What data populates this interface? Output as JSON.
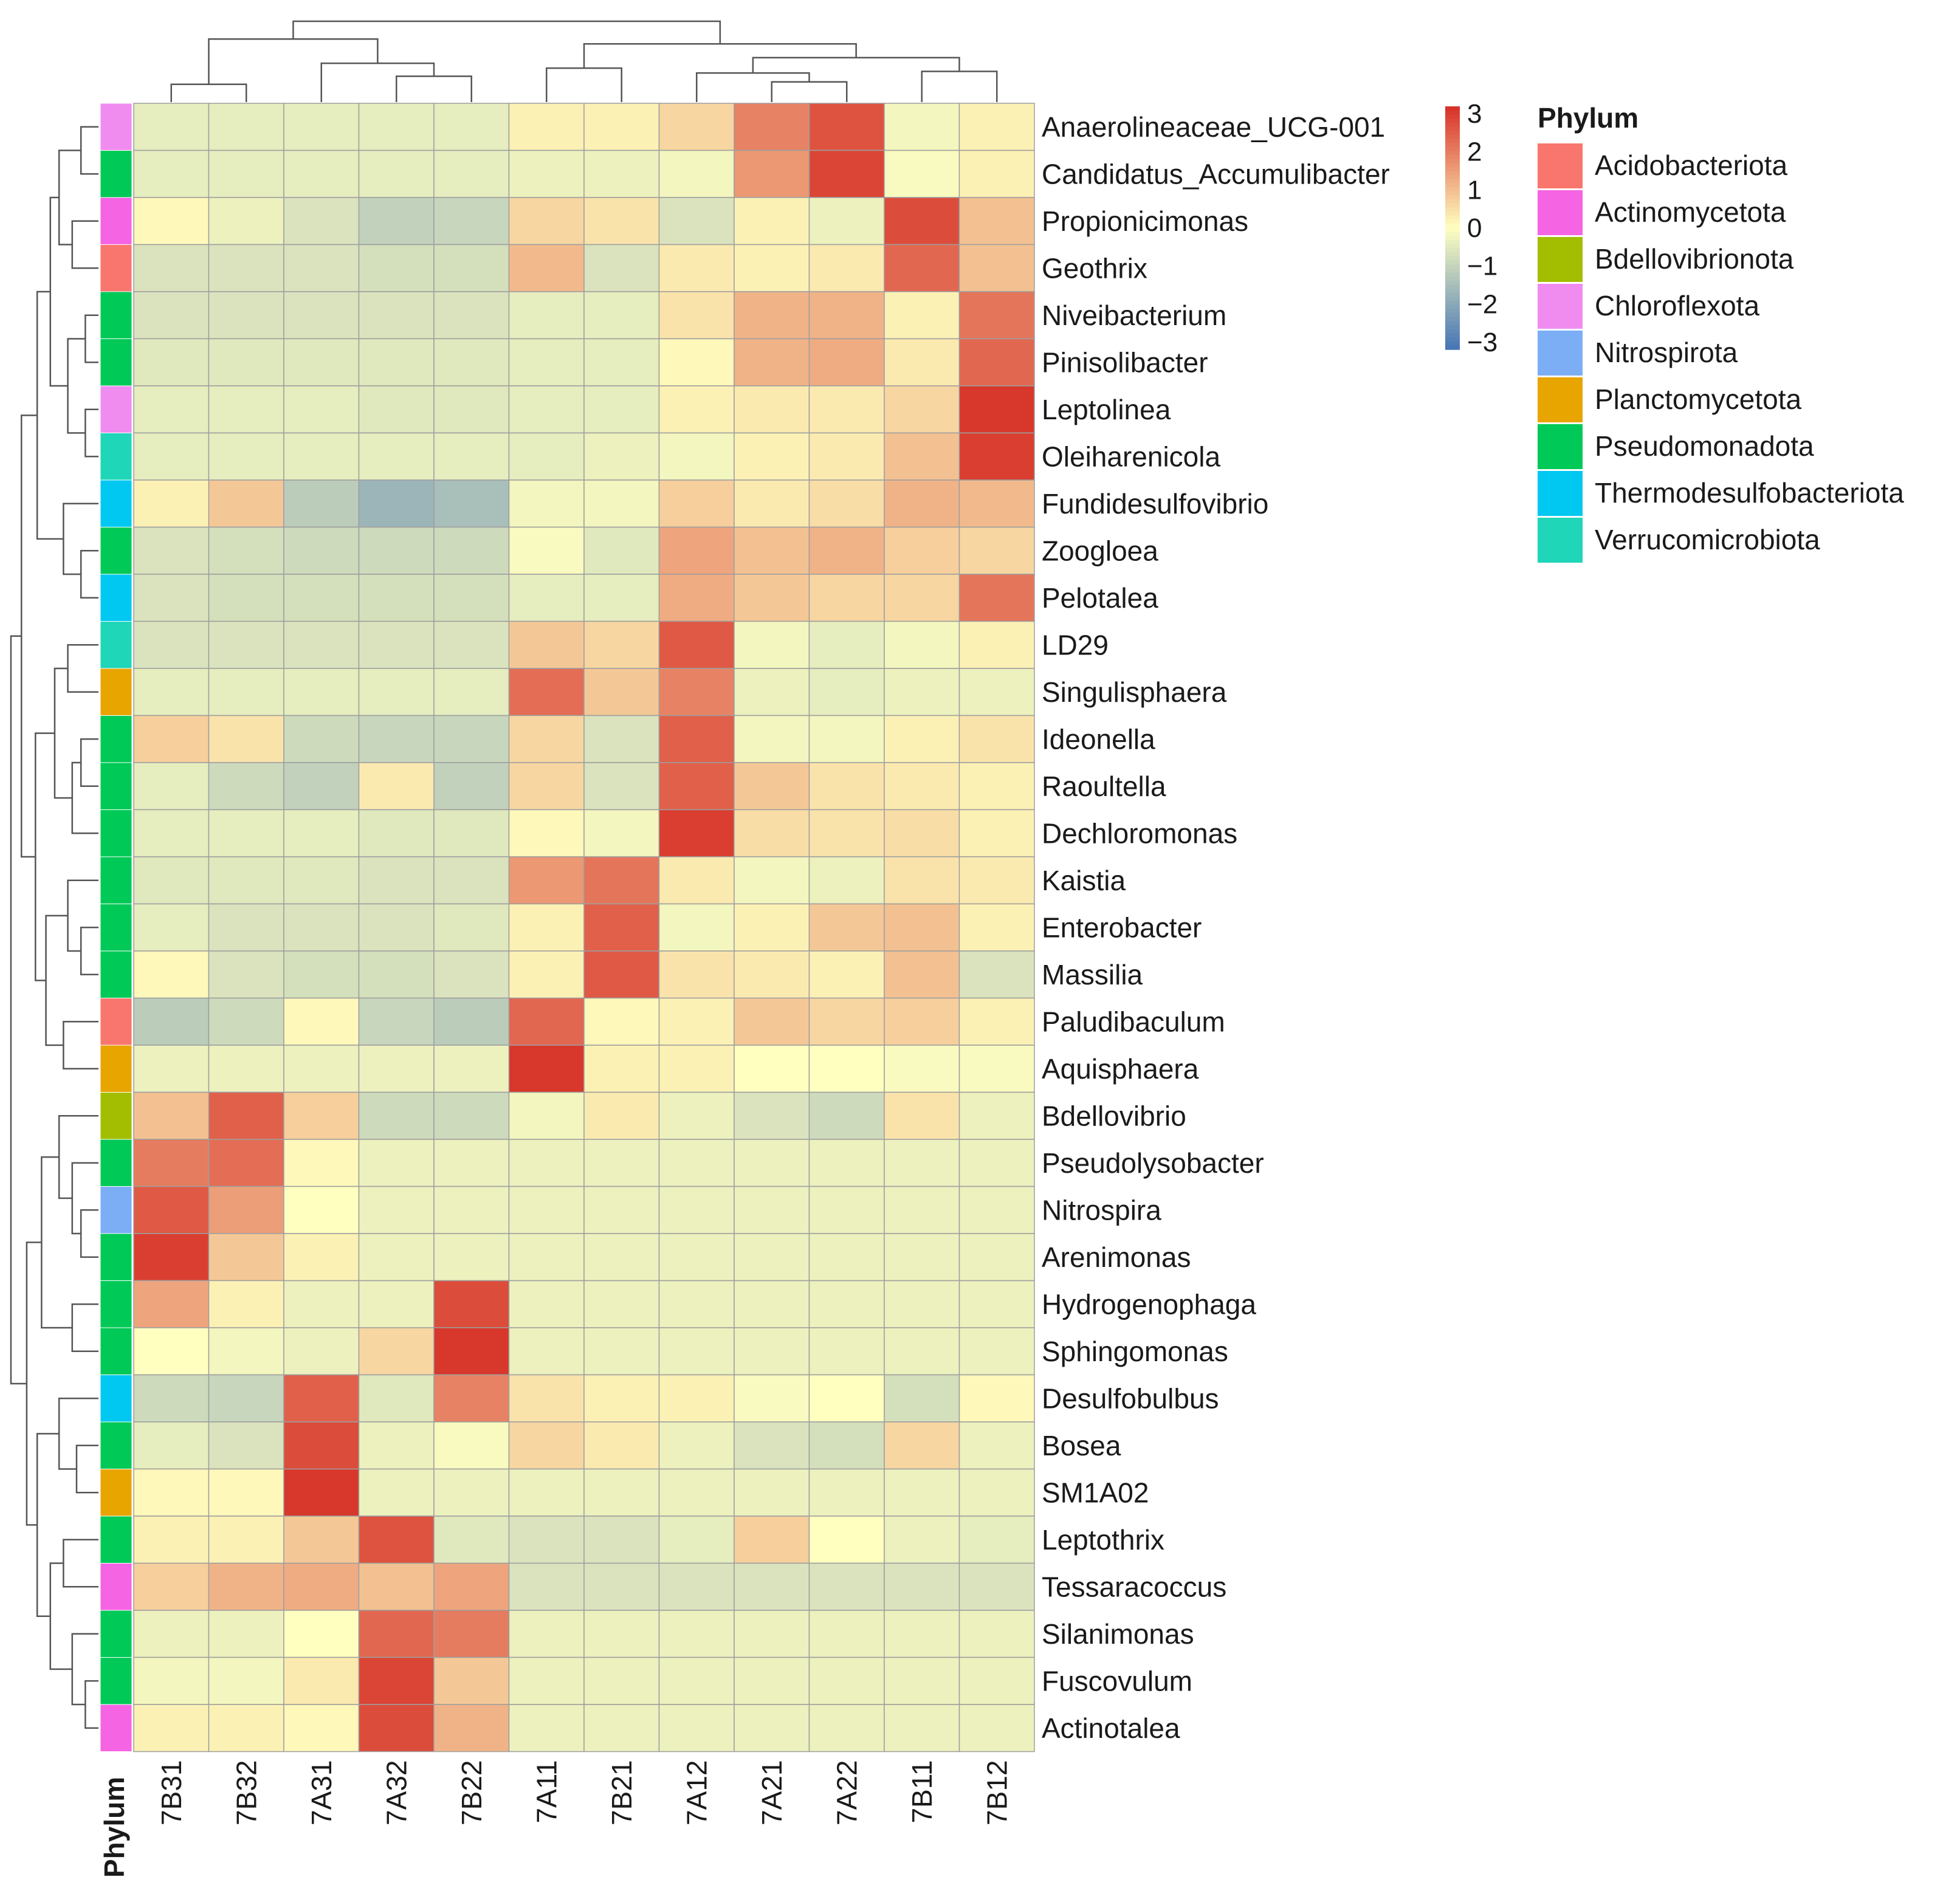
{
  "chart_data": {
    "type": "heatmap",
    "columns": [
      "7B31",
      "7B32",
      "7A31",
      "7A32",
      "7B22",
      "7A11",
      "7B21",
      "7A12",
      "7A21",
      "7A22",
      "7B11",
      "7B12"
    ],
    "rows": [
      {
        "name": "Anaerolineaceae_UCG-001",
        "phylum": "Chloroflexota",
        "values": [
          -0.4,
          -0.4,
          -0.4,
          -0.4,
          -0.4,
          0.2,
          0.2,
          0.6,
          1.8,
          2.5,
          -0.2,
          0.2
        ]
      },
      {
        "name": "Candidatus_Accumulibacter",
        "phylum": "Pseudomonadota",
        "values": [
          -0.4,
          -0.4,
          -0.4,
          -0.4,
          -0.4,
          -0.3,
          -0.3,
          -0.2,
          1.5,
          2.7,
          -0.1,
          0.2
        ]
      },
      {
        "name": "Propionicimonas",
        "phylum": "Actinomycetota",
        "values": [
          0.1,
          -0.3,
          -0.6,
          -1.0,
          -0.9,
          0.6,
          0.4,
          -0.6,
          0.2,
          -0.3,
          2.6,
          0.9
        ]
      },
      {
        "name": "Geothrix",
        "phylum": "Acidobacteriota",
        "values": [
          -0.6,
          -0.6,
          -0.6,
          -0.7,
          -0.7,
          1.0,
          -0.6,
          0.3,
          0.2,
          0.3,
          2.2,
          0.9
        ]
      },
      {
        "name": "Niveibacterium",
        "phylum": "Pseudomonadota",
        "values": [
          -0.6,
          -0.6,
          -0.6,
          -0.6,
          -0.6,
          -0.4,
          -0.4,
          0.4,
          1.1,
          1.1,
          0.2,
          2.0
        ]
      },
      {
        "name": "Pinisolibacter",
        "phylum": "Pseudomonadota",
        "values": [
          -0.5,
          -0.5,
          -0.5,
          -0.5,
          -0.5,
          -0.4,
          -0.4,
          0.1,
          1.1,
          1.2,
          0.3,
          2.2
        ]
      },
      {
        "name": "Leptolinea",
        "phylum": "Chloroflexota",
        "values": [
          -0.4,
          -0.4,
          -0.4,
          -0.5,
          -0.5,
          -0.4,
          -0.4,
          0.2,
          0.3,
          0.3,
          0.6,
          2.9
        ]
      },
      {
        "name": "Oleiharenicola",
        "phylum": "Verrucomicrobiota",
        "values": [
          -0.4,
          -0.4,
          -0.4,
          -0.4,
          -0.4,
          -0.4,
          -0.3,
          -0.2,
          0.2,
          0.3,
          0.9,
          2.8
        ]
      },
      {
        "name": "Fundidesulfovibrio",
        "phylum": "Thermodesulfobacteriota",
        "values": [
          0.2,
          0.8,
          -1.1,
          -1.6,
          -1.4,
          -0.2,
          -0.2,
          0.7,
          0.3,
          0.5,
          1.1,
          1.0
        ]
      },
      {
        "name": "Zoogloea",
        "phylum": "Pseudomonadota",
        "values": [
          -0.6,
          -0.7,
          -0.8,
          -0.8,
          -0.8,
          -0.1,
          -0.5,
          1.3,
          0.9,
          1.1,
          0.7,
          0.6
        ]
      },
      {
        "name": "Pelotalea",
        "phylum": "Thermodesulfobacteriota",
        "values": [
          -0.6,
          -0.7,
          -0.7,
          -0.7,
          -0.7,
          -0.4,
          -0.4,
          1.2,
          0.8,
          0.6,
          0.6,
          2.0
        ]
      },
      {
        "name": "LD29",
        "phylum": "Verrucomicrobiota",
        "values": [
          -0.6,
          -0.6,
          -0.6,
          -0.6,
          -0.6,
          0.8,
          0.6,
          2.4,
          -0.2,
          -0.4,
          -0.2,
          0.2
        ]
      },
      {
        "name": "Singulisphaera",
        "phylum": "Planctomycetota",
        "values": [
          -0.4,
          -0.4,
          -0.4,
          -0.4,
          -0.4,
          2.1,
          0.8,
          1.8,
          -0.3,
          -0.4,
          -0.3,
          -0.3
        ]
      },
      {
        "name": "Ideonella",
        "phylum": "Pseudomonadota",
        "values": [
          0.7,
          0.4,
          -0.8,
          -0.9,
          -0.9,
          0.6,
          -0.6,
          2.3,
          -0.2,
          -0.2,
          0.2,
          0.4
        ]
      },
      {
        "name": "Raoultella",
        "phylum": "Pseudomonadota",
        "values": [
          -0.4,
          -0.8,
          -1.0,
          0.3,
          -1.0,
          0.6,
          -0.6,
          2.3,
          0.8,
          0.4,
          0.3,
          0.2
        ]
      },
      {
        "name": "Dechloromonas",
        "phylum": "Pseudomonadota",
        "values": [
          -0.4,
          -0.4,
          -0.4,
          -0.5,
          -0.5,
          0.1,
          -0.2,
          2.8,
          0.5,
          0.4,
          0.5,
          0.2
        ]
      },
      {
        "name": "Kaistia",
        "phylum": "Pseudomonadota",
        "values": [
          -0.5,
          -0.5,
          -0.5,
          -0.6,
          -0.6,
          1.5,
          2.0,
          0.3,
          -0.2,
          -0.3,
          0.4,
          0.3
        ]
      },
      {
        "name": "Enterobacter",
        "phylum": "Pseudomonadota",
        "values": [
          -0.4,
          -0.6,
          -0.6,
          -0.6,
          -0.5,
          0.2,
          2.3,
          -0.2,
          0.2,
          0.8,
          0.9,
          0.2
        ]
      },
      {
        "name": "Massilia",
        "phylum": "Pseudomonadota",
        "values": [
          0.1,
          -0.6,
          -0.7,
          -0.7,
          -0.6,
          0.2,
          2.4,
          0.4,
          0.3,
          0.2,
          0.9,
          -0.6
        ]
      },
      {
        "name": "Paludibaculum",
        "phylum": "Acidobacteriota",
        "values": [
          -1.1,
          -0.8,
          0.1,
          -0.9,
          -1.1,
          2.2,
          0.1,
          0.2,
          0.8,
          0.6,
          0.7,
          0.2
        ]
      },
      {
        "name": "Aquisphaera",
        "phylum": "Planctomycetota",
        "values": [
          -0.3,
          -0.3,
          -0.3,
          -0.3,
          -0.3,
          2.9,
          0.2,
          0.2,
          0.0,
          0.0,
          -0.1,
          -0.1
        ]
      },
      {
        "name": "Bdellovibrio",
        "phylum": "Bdellovibrionota",
        "values": [
          0.9,
          2.3,
          0.7,
          -0.8,
          -0.8,
          -0.2,
          0.3,
          -0.3,
          -0.6,
          -0.8,
          0.4,
          -0.3
        ]
      },
      {
        "name": "Pseudolysobacter",
        "phylum": "Pseudomonadota",
        "values": [
          1.9,
          2.1,
          0.1,
          -0.3,
          -0.3,
          -0.3,
          -0.3,
          -0.3,
          -0.3,
          -0.3,
          -0.3,
          -0.3
        ]
      },
      {
        "name": "Nitrospira",
        "phylum": "Nitrospirota",
        "values": [
          2.4,
          1.4,
          0.0,
          -0.3,
          -0.3,
          -0.3,
          -0.3,
          -0.3,
          -0.3,
          -0.3,
          -0.3,
          -0.3
        ]
      },
      {
        "name": "Arenimonas",
        "phylum": "Pseudomonadota",
        "values": [
          2.8,
          0.8,
          0.2,
          -0.3,
          -0.3,
          -0.3,
          -0.3,
          -0.3,
          -0.3,
          -0.3,
          -0.3,
          -0.3
        ]
      },
      {
        "name": "Hydrogenophaga",
        "phylum": "Pseudomonadota",
        "values": [
          1.3,
          0.2,
          -0.3,
          -0.3,
          2.6,
          -0.3,
          -0.3,
          -0.3,
          -0.3,
          -0.3,
          -0.3,
          -0.3
        ]
      },
      {
        "name": "Sphingomonas",
        "phylum": "Pseudomonadota",
        "values": [
          0.0,
          -0.2,
          -0.3,
          0.6,
          2.9,
          -0.3,
          -0.3,
          -0.3,
          -0.3,
          -0.3,
          -0.3,
          -0.3
        ]
      },
      {
        "name": "Desulfobulbus",
        "phylum": "Thermodesulfobacteriota",
        "values": [
          -0.8,
          -0.9,
          2.3,
          -0.5,
          1.8,
          0.4,
          0.2,
          0.2,
          -0.1,
          0.0,
          -0.7,
          0.1
        ]
      },
      {
        "name": "Bosea",
        "phylum": "Pseudomonadota",
        "values": [
          -0.4,
          -0.6,
          2.6,
          -0.3,
          -0.1,
          0.6,
          0.3,
          -0.3,
          -0.6,
          -0.7,
          0.6,
          -0.3
        ]
      },
      {
        "name": "SM1A02",
        "phylum": "Planctomycetota",
        "values": [
          0.1,
          0.1,
          2.9,
          -0.3,
          -0.3,
          -0.3,
          -0.3,
          -0.3,
          -0.3,
          -0.3,
          -0.3,
          -0.3
        ]
      },
      {
        "name": "Leptothrix",
        "phylum": "Pseudomonadota",
        "values": [
          0.2,
          0.2,
          0.8,
          2.5,
          -0.5,
          -0.6,
          -0.6,
          -0.4,
          0.7,
          0.0,
          -0.3,
          -0.4
        ]
      },
      {
        "name": "Tessaracoccus",
        "phylum": "Actinomycetota",
        "values": [
          0.7,
          1.1,
          1.2,
          0.9,
          1.3,
          -0.6,
          -0.6,
          -0.6,
          -0.6,
          -0.6,
          -0.6,
          -0.6
        ]
      },
      {
        "name": "Silanimonas",
        "phylum": "Pseudomonadota",
        "values": [
          -0.3,
          -0.3,
          0.0,
          2.2,
          1.9,
          -0.3,
          -0.3,
          -0.3,
          -0.3,
          -0.3,
          -0.3,
          -0.3
        ]
      },
      {
        "name": "Fuscovulum",
        "phylum": "Pseudomonadota",
        "values": [
          -0.2,
          -0.2,
          0.3,
          2.7,
          0.8,
          -0.3,
          -0.3,
          -0.3,
          -0.3,
          -0.3,
          -0.3,
          -0.3
        ]
      },
      {
        "name": "Actinotalea",
        "phylum": "Actinomycetota",
        "values": [
          0.2,
          0.2,
          0.1,
          2.6,
          1.1,
          -0.3,
          -0.3,
          -0.3,
          -0.3,
          -0.3,
          -0.3,
          -0.3
        ]
      }
    ],
    "color_scale": {
      "min": -3,
      "max": 3,
      "stops": [
        "#4575b4",
        "#ffffbf",
        "#d73027"
      ],
      "ticks": [
        "3",
        "2",
        "1",
        "0",
        "−1",
        "−2",
        "−3"
      ]
    },
    "annotation_label": "Phylum",
    "legend": {
      "title": "Phylum",
      "placement": "right",
      "items": [
        {
          "name": "Acidobacteriota",
          "color": "#F8766D"
        },
        {
          "name": "Actinomycetota",
          "color": "#F564E3"
        },
        {
          "name": "Bdellovibrionota",
          "color": "#A3BE00"
        },
        {
          "name": "Chloroflexota",
          "color": "#F08CF0"
        },
        {
          "name": "Nitrospirota",
          "color": "#7CAEF6"
        },
        {
          "name": "Planctomycetota",
          "color": "#E8A500"
        },
        {
          "name": "Pseudomonadota",
          "color": "#00C957"
        },
        {
          "name": "Thermodesulfobacteriota",
          "color": "#00C8F0"
        },
        {
          "name": "Verrucomicrobiota",
          "color": "#1FD6B8"
        }
      ]
    },
    "grid": true
  }
}
